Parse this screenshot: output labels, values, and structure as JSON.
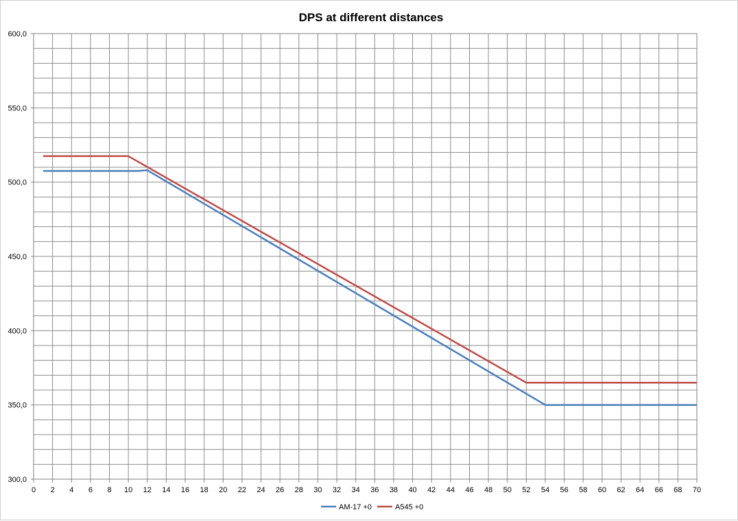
{
  "chart_data": {
    "type": "line",
    "title": "DPS at different distances",
    "xlabel": "",
    "ylabel": "",
    "xlim": [
      0,
      70
    ],
    "ylim": [
      300,
      600
    ],
    "x_ticks": [
      0,
      2,
      4,
      6,
      8,
      10,
      12,
      14,
      16,
      18,
      20,
      22,
      24,
      26,
      28,
      30,
      32,
      34,
      36,
      38,
      40,
      42,
      44,
      46,
      48,
      50,
      52,
      54,
      56,
      58,
      60,
      62,
      64,
      66,
      68,
      70
    ],
    "y_ticks": [
      "300,0",
      "350,0",
      "400,0",
      "450,0",
      "500,0",
      "550,0",
      "600,0"
    ],
    "y_tick_values": [
      300,
      350,
      400,
      450,
      500,
      550,
      600
    ],
    "grid": true,
    "legend_position": "bottom",
    "series": [
      {
        "name": "AM-17 +0",
        "color": "#4a7ebb",
        "x": [
          1,
          11,
          12,
          54,
          70
        ],
        "y": [
          507.5,
          507.5,
          508,
          350,
          350
        ]
      },
      {
        "name": "A545 +0",
        "color": "#be4b48",
        "x": [
          1,
          10,
          52,
          70
        ],
        "y": [
          517.5,
          517.5,
          365,
          365
        ]
      }
    ]
  }
}
